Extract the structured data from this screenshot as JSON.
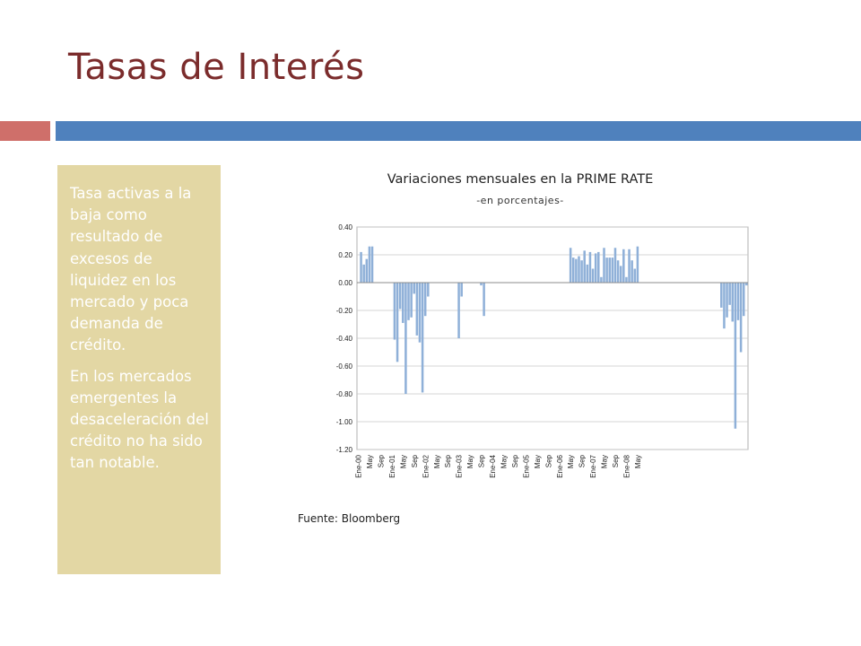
{
  "slide": {
    "title": "Tasas de Interés",
    "paragraphs": [
      "Tasa activas a la baja como resultado de excesos de liquidez en los mercado y poca demanda de crédito.",
      "En los mercados emergentes la desaceleración del crédito no ha sido tan notable."
    ],
    "source": "Fuente: Bloomberg"
  },
  "colors": {
    "title": "#7b2c2c",
    "accent_red": "#cf6f6a",
    "accent_blue": "#4f81bd",
    "panel": "#e3d7a4",
    "bars": "#8fb0d8"
  },
  "chart_data": {
    "type": "bar",
    "title": "Variaciones mensuales en la PRIME RATE",
    "subtitle": "-en porcentajes-",
    "ylim": [
      -1.2,
      0.4
    ],
    "yticks": [
      -1.2,
      -1.0,
      -0.8,
      -0.6,
      -0.4,
      -0.2,
      0.0,
      0.2,
      0.4
    ],
    "ytick_labels": [
      "-1.20",
      "-1.00",
      "-0.80",
      "-0.60",
      "-0.40",
      "-0.20",
      "0.00",
      "0.20",
      "0.40"
    ],
    "grid": true,
    "x_tick_labels": [
      "Ene-00",
      "May",
      "Sep",
      "Ene-01",
      "May",
      "Sep",
      "Ene-02",
      "May",
      "Sep",
      "Ene-03",
      "May",
      "Sep",
      "Ene-04",
      "May",
      "Sep",
      "Ene-05",
      "May",
      "Sep",
      "Ene-06",
      "May",
      "Sep",
      "Ene-07",
      "May",
      "Sep",
      "Ene-08",
      "May"
    ],
    "x_tick_every": 4,
    "values": [
      0,
      0.22,
      0.13,
      0.17,
      0.26,
      0.26,
      0,
      0,
      0,
      0,
      0,
      0,
      0,
      -0.41,
      -0.57,
      -0.19,
      -0.29,
      -0.8,
      -0.27,
      -0.25,
      -0.08,
      -0.38,
      -0.43,
      -0.79,
      -0.24,
      -0.1,
      0,
      0,
      0,
      0,
      0,
      0,
      0,
      0,
      0,
      0,
      -0.4,
      -0.1,
      0,
      0,
      0,
      0,
      0,
      0,
      -0.02,
      -0.24,
      0,
      0,
      0,
      0,
      0,
      0,
      0,
      0,
      0,
      0,
      0,
      0,
      0,
      0,
      0,
      0,
      0,
      0,
      0,
      0,
      0,
      0,
      0,
      0,
      0,
      0,
      0,
      0,
      0,
      0,
      0.25,
      0.18,
      0.17,
      0.19,
      0.16,
      0.23,
      0.13,
      0.22,
      0.1,
      0.21,
      0.22,
      0.04,
      0.25,
      0.18,
      0.18,
      0.18,
      0.25,
      0.16,
      0.12,
      0.24,
      0.04,
      0.24,
      0.16,
      0.1,
      0.26,
      0,
      0,
      0,
      0,
      0,
      0,
      0,
      0,
      0,
      0,
      0,
      0,
      0,
      0,
      0,
      0,
      0,
      0,
      0,
      0,
      0,
      0,
      0,
      0,
      0,
      0,
      0,
      0,
      0,
      -0.18,
      -0.33,
      -0.25,
      -0.16,
      -0.28,
      -1.05,
      -0.27,
      -0.5,
      -0.24,
      -0.02
    ]
  }
}
